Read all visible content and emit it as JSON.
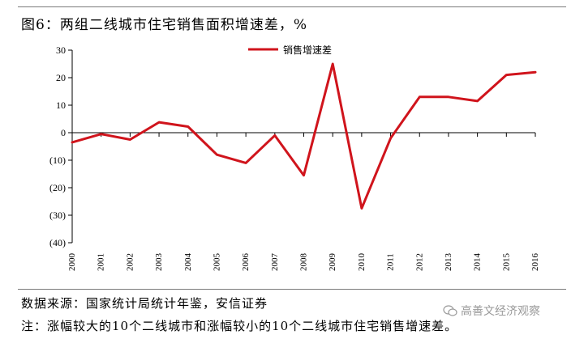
{
  "figure": {
    "title": "图6：两组二线城市住宅销售面积增速差，%",
    "source": "数据来源：国家统计局统计年鉴，安信证券",
    "note": "注：涨幅较大的10个二线城市和涨幅较小的10个二线城市住宅销售增速差。",
    "watermark": "高善文经济观察"
  },
  "chart_data": {
    "type": "line",
    "title": "",
    "xlabel": "",
    "ylabel": "",
    "x": [
      "2000",
      "2001",
      "2002",
      "2003",
      "2004",
      "2005",
      "2006",
      "2007",
      "2008",
      "2009",
      "2010",
      "2011",
      "2012",
      "2013",
      "2014",
      "2015",
      "2016"
    ],
    "series": [
      {
        "name": "销售增速差",
        "color": "#d0141c",
        "values": [
          -3.5,
          -0.5,
          -2.5,
          3.8,
          2.2,
          -8,
          -11,
          -1,
          -15.5,
          25,
          -27.5,
          -2,
          13,
          13,
          11.5,
          21,
          22
        ]
      }
    ],
    "ylim": [
      -40,
      30
    ],
    "yticks": [
      30,
      20,
      10,
      0,
      -10,
      -20,
      -30,
      -40
    ],
    "ytick_labels": [
      "30",
      "20",
      "10",
      "0",
      "(10)",
      "(20)",
      "(30)",
      "(40)"
    ],
    "positive_tick_color": "#000000",
    "negative_tick_color": "#c0001a",
    "grid": false,
    "legend_position": "top-center"
  }
}
